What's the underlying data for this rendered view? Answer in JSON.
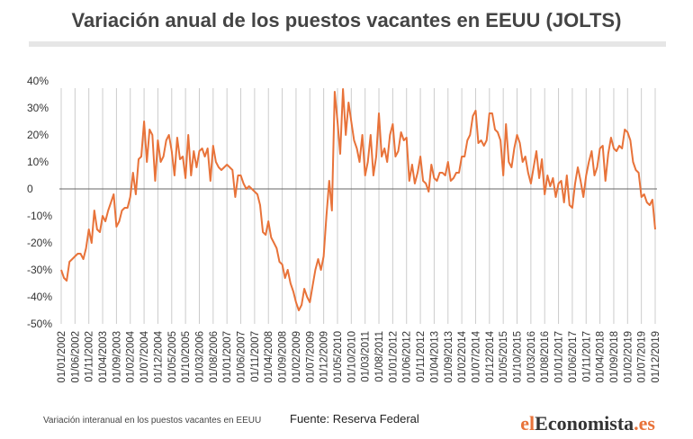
{
  "chart_data": {
    "type": "line",
    "title": "Variación anual de los puestos vacantes en EEUU (JOLTS)",
    "note": "Variación interanual en los puestos vacantes en EEUU",
    "source": "Fuente: Reserva Federal",
    "logo": [
      "el",
      "Economista",
      ".es"
    ],
    "categories": [
      "01/01/2002",
      null,
      null,
      null,
      null,
      "01/06/2002",
      null,
      null,
      null,
      null,
      "01/11/2002",
      null,
      null,
      null,
      null,
      "01/04/2003",
      null,
      null,
      null,
      null,
      "01/09/2003",
      null,
      null,
      null,
      null,
      "01/02/2004",
      null,
      null,
      null,
      null,
      "01/07/2004",
      null,
      null,
      null,
      null,
      "01/12/2004",
      null,
      null,
      null,
      null,
      "01/05/2005",
      null,
      null,
      null,
      null,
      "01/10/2005",
      null,
      null,
      null,
      null,
      "01/03/2006",
      null,
      null,
      null,
      null,
      "01/08/2006",
      null,
      null,
      null,
      null,
      "01/01/2007",
      null,
      null,
      null,
      null,
      "01/06/2007",
      null,
      null,
      null,
      null,
      "01/11/2007",
      null,
      null,
      null,
      null,
      "01/04/2008",
      null,
      null,
      null,
      null,
      "01/09/2008",
      null,
      null,
      null,
      null,
      "01/02/2009",
      null,
      null,
      null,
      null,
      "01/07/2009",
      null,
      null,
      null,
      null,
      "01/12/2009",
      null,
      null,
      null,
      null,
      "01/05/2010",
      null,
      null,
      null,
      null,
      "01/10/2010",
      null,
      null,
      null,
      null,
      "01/03/2011",
      null,
      null,
      null,
      null,
      "01/08/2011",
      null,
      null,
      null,
      null,
      "01/01/2012",
      null,
      null,
      null,
      null,
      "01/06/2012",
      null,
      null,
      null,
      null,
      "01/11/2012",
      null,
      null,
      null,
      null,
      "01/04/2013",
      null,
      null,
      null,
      null,
      "01/09/2013",
      null,
      null,
      null,
      null,
      "01/02/2014",
      null,
      null,
      null,
      null,
      "01/07/2014",
      null,
      null,
      null,
      null,
      "01/12/2014",
      null,
      null,
      null,
      null,
      "01/05/2015",
      null,
      null,
      null,
      null,
      "01/10/2015",
      null,
      null,
      null,
      null,
      "01/03/2016",
      null,
      null,
      null,
      null,
      "01/08/2016",
      null,
      null,
      null,
      null,
      "01/01/2017",
      null,
      null,
      null,
      null,
      "01/06/2017",
      null,
      null,
      null,
      null,
      "01/11/2017",
      null,
      null,
      null,
      null,
      "01/04/2018",
      null,
      null,
      null,
      null,
      "01/09/2018",
      null,
      null,
      null,
      null,
      "01/02/2019",
      null,
      null,
      null,
      null,
      "01/07/2019",
      null,
      null,
      null,
      null,
      "01/12/2019"
    ],
    "values": [
      -30,
      -33,
      -34,
      -27,
      -26,
      -25,
      -24,
      -24,
      -26,
      -22,
      -15,
      -20,
      -8,
      -15,
      -16,
      -10,
      -12,
      -8,
      -5,
      -2,
      -14,
      -12,
      -8,
      -7,
      -7,
      -3,
      6,
      -2,
      11,
      12,
      25,
      10,
      22,
      20,
      3,
      18,
      10,
      12,
      18,
      20,
      14,
      5,
      19,
      11,
      12,
      4,
      20,
      5,
      14,
      8,
      14,
      15,
      12,
      15,
      3,
      16,
      10,
      8,
      7,
      8,
      9,
      8,
      7,
      -3,
      5,
      5,
      2,
      0,
      1,
      0,
      -1,
      -2,
      -6,
      -16,
      -17,
      -12,
      -18,
      -20,
      -22,
      -27,
      -28,
      -33,
      -30,
      -35,
      -38,
      -42,
      -45,
      -43,
      -37,
      -40,
      -42,
      -36,
      -30,
      -26,
      -30,
      -25,
      -10,
      3,
      -8,
      36,
      25,
      13,
      37,
      20,
      32,
      25,
      18,
      15,
      10,
      20,
      5,
      10,
      20,
      5,
      12,
      28,
      12,
      15,
      10,
      20,
      24,
      12,
      14,
      21,
      18,
      19,
      3,
      9,
      2,
      6,
      12,
      3,
      2,
      -1,
      9,
      4,
      3,
      6,
      6,
      5,
      10,
      3,
      4,
      6,
      6,
      12,
      12,
      18,
      20,
      27,
      29,
      17,
      18,
      16,
      18,
      28,
      28,
      22,
      21,
      18,
      5,
      24,
      10,
      8,
      15,
      20,
      17,
      10,
      12,
      6,
      2,
      8,
      14,
      4,
      11,
      -2,
      5,
      1,
      4,
      -3,
      2,
      3,
      -5,
      5,
      -6,
      -7,
      2,
      8,
      3,
      -3,
      5,
      10,
      14,
      5,
      8,
      15,
      16,
      3,
      13,
      19,
      15,
      14,
      16,
      15,
      22,
      21,
      18,
      10,
      7,
      6,
      -3,
      -2,
      -5,
      -6,
      -4,
      -15
    ],
    "color": "#e8733a",
    "ylim": [
      -50,
      40
    ],
    "yticks": [
      {
        "value": 40,
        "label": "40%"
      },
      {
        "value": 30,
        "label": "30%"
      },
      {
        "value": 20,
        "label": "20%"
      },
      {
        "value": 10,
        "label": "10%"
      },
      0,
      {
        "value": -10,
        "label": "-10%"
      },
      {
        "value": -20,
        "label": "-20%"
      },
      {
        "value": -30,
        "label": "-30%"
      },
      {
        "value": -40,
        "label": "-40%"
      },
      {
        "value": -50,
        "label": "-50%"
      }
    ],
    "grid": true
  }
}
